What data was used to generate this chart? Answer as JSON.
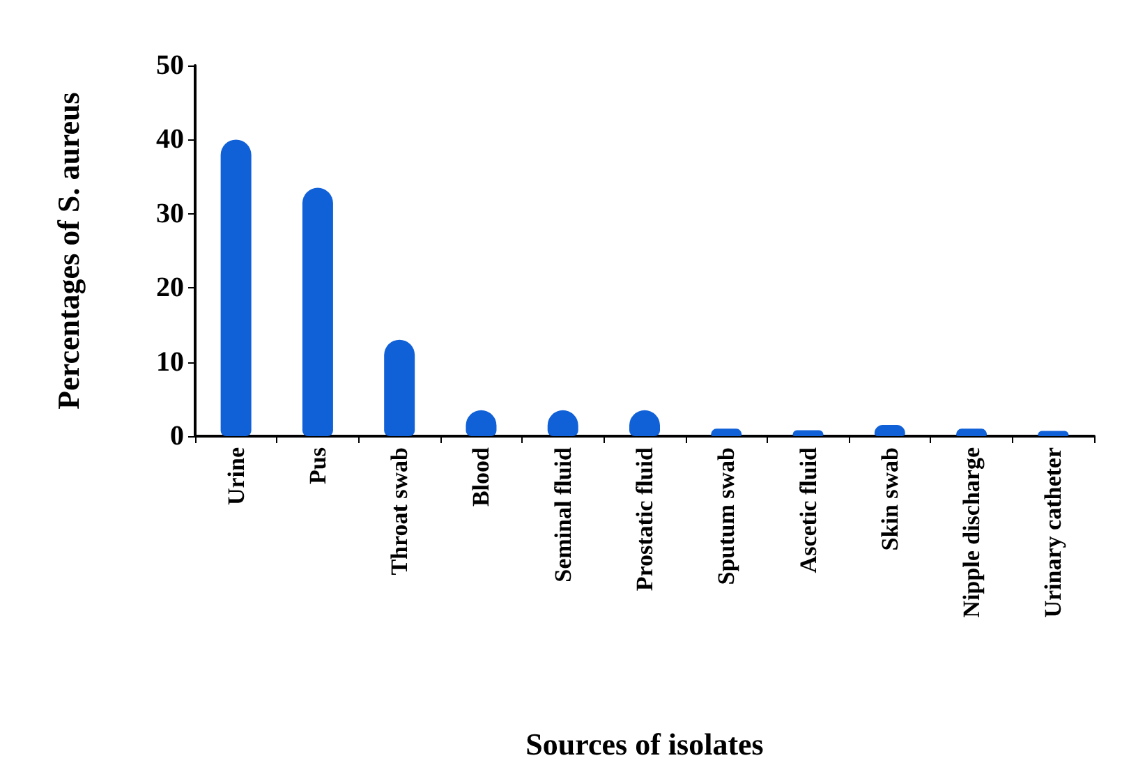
{
  "chart_data": {
    "type": "bar",
    "xlabel": "Sources of isolates",
    "ylabel": "Percentages of S. aureus",
    "categories": [
      "Urine",
      "Pus",
      "Throat swab",
      "Blood",
      "Seminal fluid",
      "Prostatic fluid",
      "Sputum swab",
      "Ascetic fluid",
      "Skin swab",
      "Nipple discharge",
      "Urinary catheter"
    ],
    "values": [
      40,
      33.5,
      13,
      3.5,
      3.5,
      3.5,
      1,
      0.8,
      1.5,
      1,
      0.7
    ],
    "color": "#1060d8",
    "ylim": [
      0,
      50
    ],
    "yticks": [
      0,
      10,
      20,
      30,
      40,
      50
    ]
  }
}
